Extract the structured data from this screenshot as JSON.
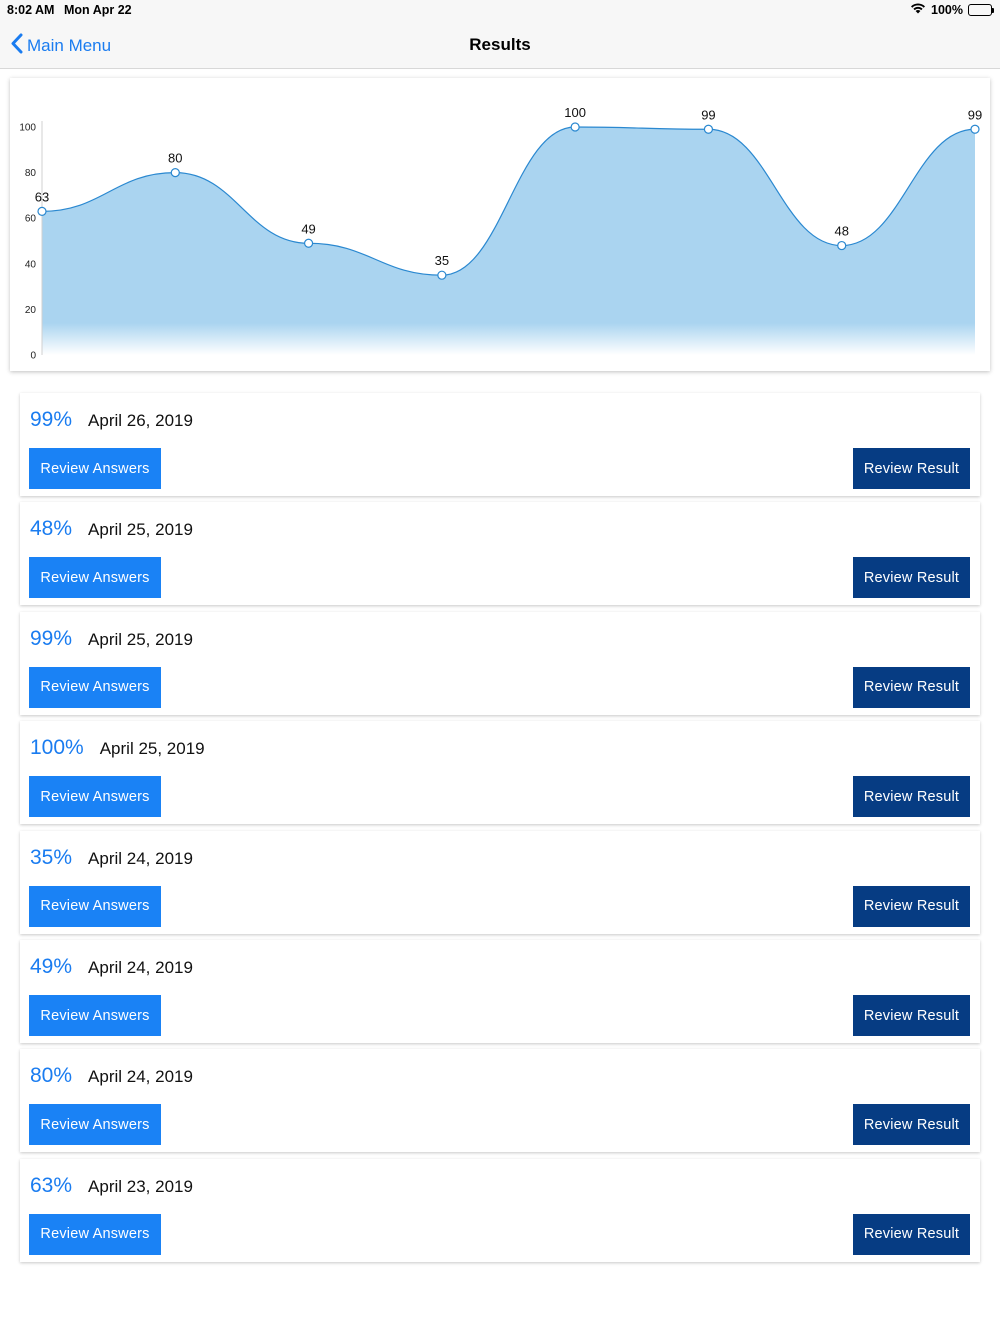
{
  "status_bar": {
    "time": "8:02 AM",
    "date": "Mon Apr 22",
    "battery": "100%"
  },
  "nav": {
    "back_label": "Main Menu",
    "title": "Results"
  },
  "colors": {
    "accent": "#1a7cf0",
    "primary_button": "#1a82f5",
    "secondary_button": "#063c83",
    "area_fill": "#aad4f0",
    "line": "#2a88d0"
  },
  "chart_data": {
    "type": "area",
    "x": [
      1,
      2,
      3,
      4,
      5,
      6,
      7,
      8
    ],
    "values": [
      63,
      80,
      49,
      35,
      100,
      99,
      48,
      99
    ],
    "data_labels": [
      "63",
      "80",
      "49",
      "35",
      "100",
      "99",
      "48",
      "99"
    ],
    "y_ticks": [
      "0",
      "20",
      "40",
      "60",
      "80",
      "100"
    ],
    "ylim": [
      0,
      100
    ],
    "title": "",
    "xlabel": "",
    "ylabel": "",
    "grid": false,
    "smooth": true
  },
  "results": [
    {
      "score": "99%",
      "date": "April 26, 2019",
      "answers_label": "Review Answers",
      "result_label": "Review Result"
    },
    {
      "score": "48%",
      "date": "April 25, 2019",
      "answers_label": "Review Answers",
      "result_label": "Review Result"
    },
    {
      "score": "99%",
      "date": "April 25, 2019",
      "answers_label": "Review Answers",
      "result_label": "Review Result"
    },
    {
      "score": "100%",
      "date": "April 25, 2019",
      "answers_label": "Review Answers",
      "result_label": "Review Result"
    },
    {
      "score": "35%",
      "date": "April 24, 2019",
      "answers_label": "Review Answers",
      "result_label": "Review Result"
    },
    {
      "score": "49%",
      "date": "April 24, 2019",
      "answers_label": "Review Answers",
      "result_label": "Review Result"
    },
    {
      "score": "80%",
      "date": "April 24, 2019",
      "answers_label": "Review Answers",
      "result_label": "Review Result"
    },
    {
      "score": "63%",
      "date": "April 23, 2019",
      "answers_label": "Review Answers",
      "result_label": "Review Result"
    }
  ]
}
